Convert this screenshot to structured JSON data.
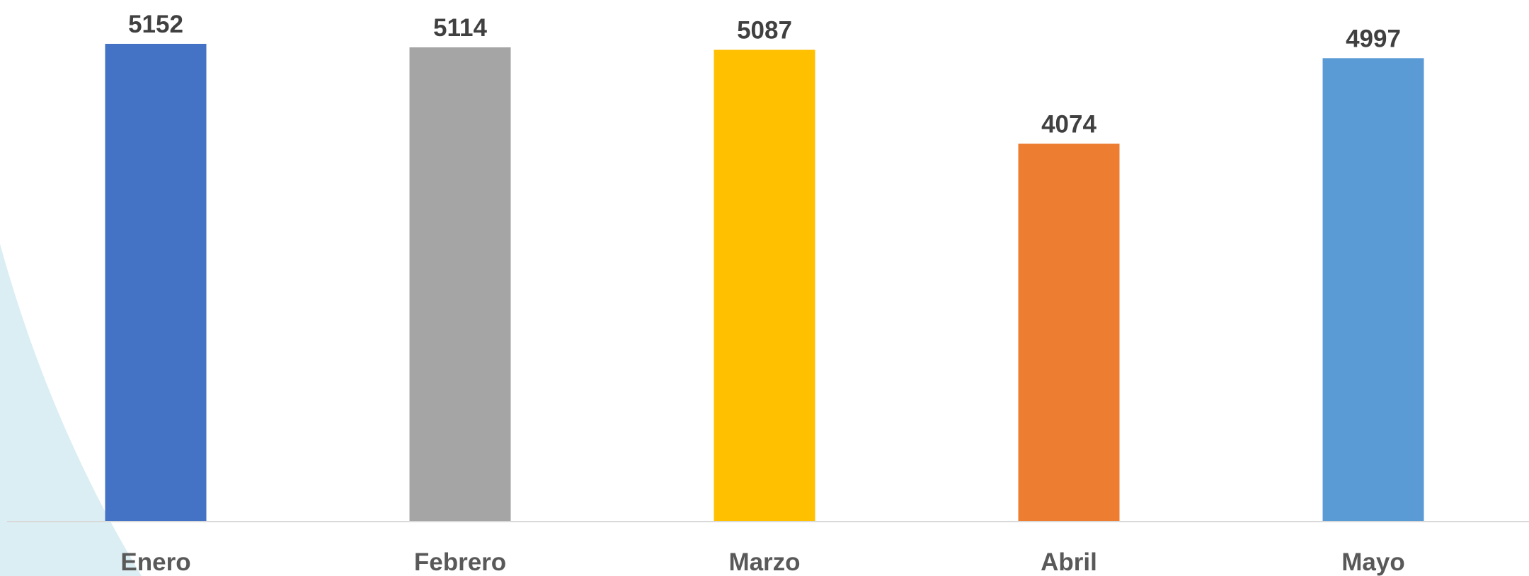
{
  "chart_data": {
    "type": "bar",
    "categories": [
      "Enero",
      "Febrero",
      "Marzo",
      "Abril",
      "Mayo"
    ],
    "values": [
      5152,
      5114,
      5087,
      4074,
      4997
    ],
    "colors": [
      "#4472C4",
      "#A5A5A5",
      "#FFC000",
      "#ED7D31",
      "#5B9BD5"
    ],
    "title": "",
    "xlabel": "",
    "ylabel": "",
    "ylim": [
      0,
      5152
    ],
    "grid": false,
    "legend": "none",
    "data_labels": true,
    "baseline_color": "#D9D9D9",
    "background_shape_color": "#DAEEF3"
  }
}
